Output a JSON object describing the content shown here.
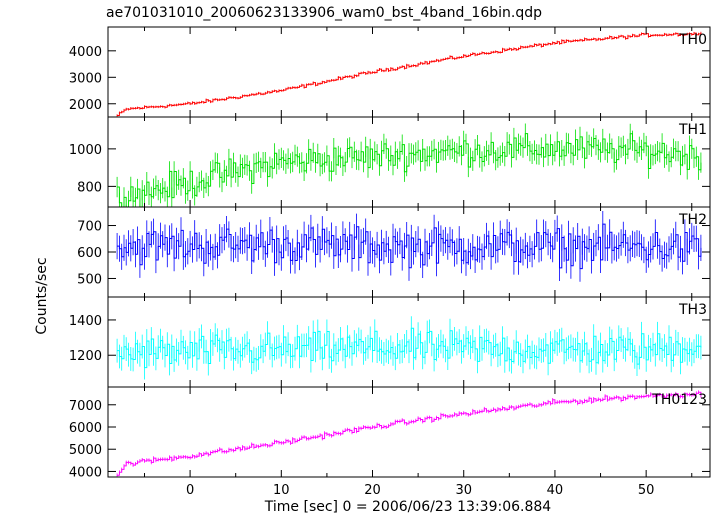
{
  "chart_data": {
    "type": "line",
    "title": "ae701031010_20060623133906_wam0_bst_4band_16bin.qdp",
    "xlabel": "Time [sec] 0 = 2006/06/23 13:39:06.884",
    "ylabel": "Counts/sec",
    "xlim": [
      -9,
      57
    ],
    "x_ticks": [
      0,
      10,
      20,
      30,
      40,
      50
    ],
    "x_tick_labels": [
      "0",
      "10",
      "20",
      "30",
      "40",
      "50"
    ],
    "grid": false,
    "sample_step": 0.25,
    "series": [
      {
        "name": "TH0",
        "color": "#ff0000",
        "ylim": [
          1500,
          4900
        ],
        "y_ticks": [
          2000,
          3000,
          4000
        ],
        "y_tick_labels": [
          "2000",
          "3000",
          "4000"
        ],
        "trend": [
          [
            -8,
            1550
          ],
          [
            -7,
            1800
          ],
          [
            0,
            2000
          ],
          [
            10,
            2500
          ],
          [
            20,
            3200
          ],
          [
            30,
            3800
          ],
          [
            40,
            4300
          ],
          [
            50,
            4600
          ],
          [
            56,
            4650
          ]
        ],
        "noise": 50
      },
      {
        "name": "TH1",
        "color": "#00e000",
        "ylim": [
          690,
          1170
        ],
        "y_ticks": [
          800,
          1000
        ],
        "y_tick_labels": [
          "800",
          "1000"
        ],
        "trend": [
          [
            -8,
            740
          ],
          [
            0,
            820
          ],
          [
            5,
            880
          ],
          [
            10,
            930
          ],
          [
            20,
            960
          ],
          [
            30,
            990
          ],
          [
            40,
            1000
          ],
          [
            50,
            990
          ],
          [
            56,
            960
          ]
        ],
        "noise": 60
      },
      {
        "name": "TH2",
        "color": "#0000ff",
        "ylim": [
          430,
          770
        ],
        "y_ticks": [
          500,
          600,
          700
        ],
        "y_tick_labels": [
          "500",
          "600",
          "700"
        ],
        "trend": [
          [
            -8,
            620
          ],
          [
            10,
            630
          ],
          [
            20,
            620
          ],
          [
            30,
            620
          ],
          [
            40,
            620
          ],
          [
            50,
            620
          ],
          [
            56,
            610
          ]
        ],
        "noise": 55
      },
      {
        "name": "TH3",
        "color": "#00ffff",
        "ylim": [
          1020,
          1530
        ],
        "y_ticks": [
          1200,
          1400
        ],
        "y_tick_labels": [
          "1200",
          "1400"
        ],
        "trend": [
          [
            -8,
            1210
          ],
          [
            10,
            1230
          ],
          [
            20,
            1240
          ],
          [
            30,
            1240
          ],
          [
            40,
            1230
          ],
          [
            50,
            1230
          ],
          [
            56,
            1260
          ]
        ],
        "noise": 75
      },
      {
        "name": "TH0123",
        "color": "#ff00ff",
        "ylim": [
          3750,
          7800
        ],
        "y_ticks": [
          4000,
          5000,
          6000,
          7000
        ],
        "y_tick_labels": [
          "4000",
          "5000",
          "6000",
          "7000"
        ],
        "trend": [
          [
            -8,
            3850
          ],
          [
            -7,
            4350
          ],
          [
            0,
            4700
          ],
          [
            10,
            5300
          ],
          [
            20,
            6000
          ],
          [
            30,
            6600
          ],
          [
            40,
            7100
          ],
          [
            50,
            7400
          ],
          [
            56,
            7500
          ]
        ],
        "noise": 90
      }
    ]
  }
}
